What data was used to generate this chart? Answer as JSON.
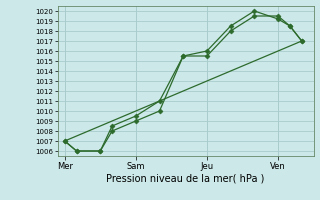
{
  "background_color": "#cce8e8",
  "grid_color": "#aacccc",
  "line_color": "#2d6b2d",
  "title": "Pression niveau de la mer( hPa )",
  "ylim": [
    1005.5,
    1020.5
  ],
  "yticks": [
    1006,
    1007,
    1008,
    1009,
    1010,
    1011,
    1012,
    1013,
    1014,
    1015,
    1016,
    1017,
    1018,
    1019,
    1020
  ],
  "x_labels": [
    "Mer",
    "Sam",
    "Jeu",
    "Ven"
  ],
  "x_tick_positions": [
    0,
    3,
    6,
    9
  ],
  "series1": {
    "x": [
      0,
      0.5,
      1.5,
      2,
      3,
      4,
      5,
      6,
      7,
      8,
      9,
      9.5,
      10
    ],
    "y": [
      1007.0,
      1006.0,
      1006.0,
      1008.0,
      1009.0,
      1010.0,
      1015.5,
      1015.5,
      1018.0,
      1019.5,
      1019.5,
      1018.5,
      1017.0
    ]
  },
  "series2": {
    "x": [
      0,
      0.5,
      1.5,
      2,
      3,
      4,
      5,
      6,
      7,
      8,
      9,
      9.5,
      10
    ],
    "y": [
      1007.0,
      1006.0,
      1006.0,
      1008.5,
      1009.5,
      1011.0,
      1015.5,
      1016.0,
      1018.5,
      1020.0,
      1019.2,
      1018.5,
      1017.0
    ]
  },
  "series3": {
    "x": [
      0,
      10
    ],
    "y": [
      1007.0,
      1017.0
    ]
  },
  "xlim": [
    -0.3,
    10.5
  ],
  "figsize": [
    3.2,
    2.0
  ],
  "dpi": 100
}
